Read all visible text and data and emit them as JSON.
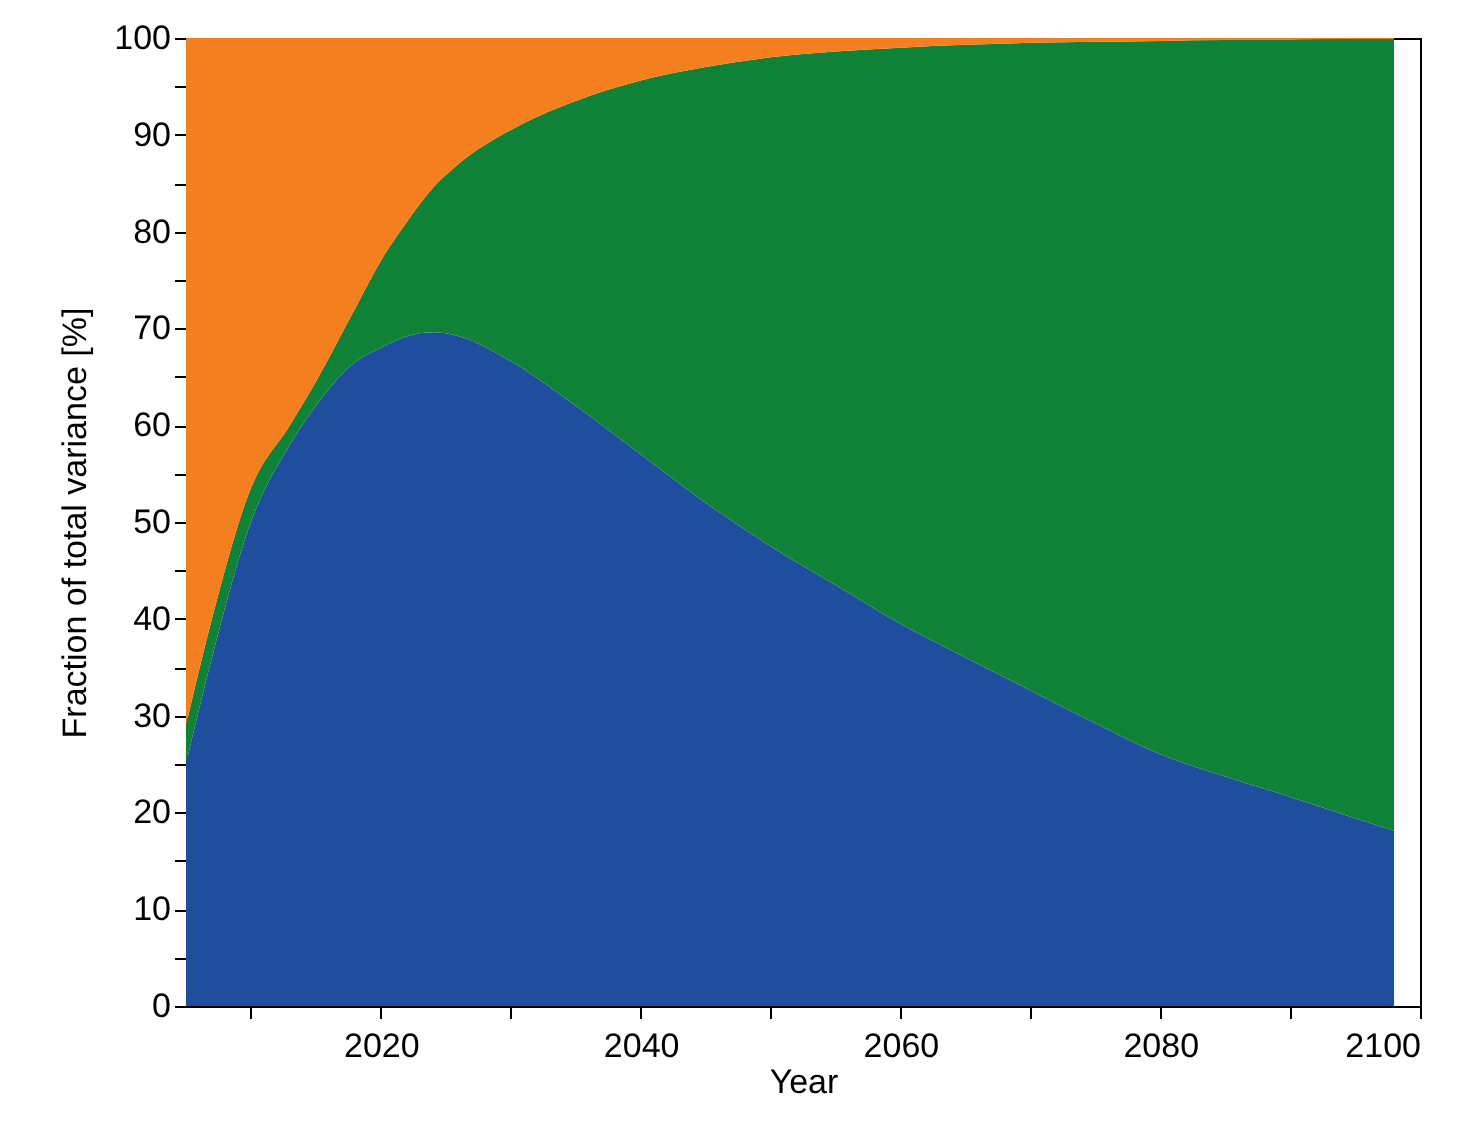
{
  "chart_data": {
    "type": "area",
    "stacked": true,
    "xlabel": "Year",
    "ylabel": "Fraction of total variance [%]",
    "x": [
      2005,
      2007,
      2010,
      2013,
      2015,
      2018,
      2020,
      2022,
      2024,
      2026,
      2030,
      2035,
      2040,
      2045,
      2050,
      2055,
      2060,
      2065,
      2070,
      2075,
      2080,
      2085,
      2090,
      2095,
      2098
    ],
    "series": [
      {
        "color": "#1f4e9e",
        "values": [
          25,
          36,
          50,
          58,
          62,
          66.5,
          68,
          69.2,
          69.6,
          69.2,
          66.6,
          62,
          57,
          52,
          47.5,
          43.5,
          39.5,
          36,
          32.6,
          29.2,
          26,
          23.7,
          21.6,
          19.4,
          18.1
        ]
      },
      {
        "color": "#0f8238",
        "values": [
          4,
          4,
          3.5,
          2,
          2.5,
          5.5,
          9,
          11.8,
          14.9,
          17.8,
          23.9,
          31.5,
          38.6,
          45,
          50.5,
          55.1,
          59.5,
          63.3,
          66.9,
          70.4,
          73.7,
          76.1,
          78.2,
          80.5,
          81.8
        ]
      },
      {
        "color": "#f47f1f",
        "values": [
          71,
          60,
          46.5,
          40,
          35.5,
          28,
          23,
          19,
          15.5,
          13,
          9.5,
          6.5,
          4.4,
          3,
          2,
          1.4,
          1,
          0.7,
          0.5,
          0.4,
          0.3,
          0.2,
          0.2,
          0.1,
          0.1
        ]
      }
    ],
    "xlim": [
      2005,
      2100
    ],
    "xticks": [
      {
        "value": 2010,
        "label": null
      },
      2020,
      {
        "value": 2030,
        "label": null
      },
      2040,
      {
        "value": 2050,
        "label": null
      },
      2060,
      {
        "value": 2070,
        "label": null
      },
      2080,
      {
        "value": 2090,
        "label": null
      },
      2100
    ],
    "ylim": [
      0,
      100
    ],
    "yticks": [
      0,
      {
        "value": 5,
        "label": null
      },
      10,
      {
        "value": 15,
        "label": null
      },
      20,
      {
        "value": 25,
        "label": null
      },
      30,
      {
        "value": 35,
        "label": null
      },
      40,
      {
        "value": 45,
        "label": null
      },
      50,
      {
        "value": 55,
        "label": null
      },
      60,
      {
        "value": 65,
        "label": null
      },
      70,
      {
        "value": 75,
        "label": null
      },
      80,
      {
        "value": 85,
        "label": null
      },
      90,
      {
        "value": 95,
        "label": null
      },
      100
    ]
  }
}
